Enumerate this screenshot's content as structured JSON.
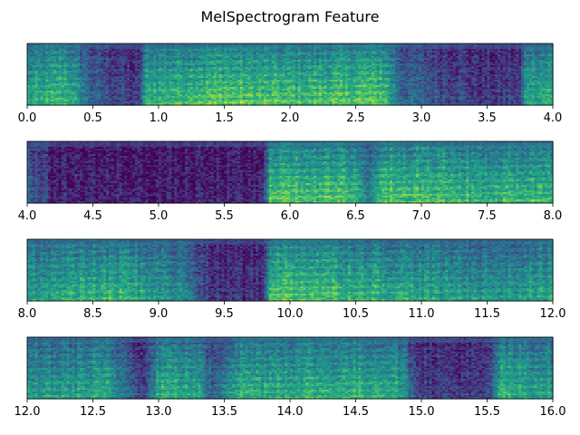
{
  "chart_data": {
    "type": "heatmap",
    "title": "MelSpectrogram Feature",
    "xlabel": "",
    "ylabel": "",
    "colormap": "viridis",
    "colors": {
      "low": "#440154",
      "mid": "#21918c",
      "high": "#fde725"
    },
    "grid": false,
    "legend": "none",
    "panels": [
      {
        "xlim": [
          0.0,
          4.0
        ],
        "xticks": [
          "0.0",
          "0.5",
          "1.0",
          "1.5",
          "2.0",
          "2.5",
          "3.0",
          "3.5",
          "4.0"
        ],
        "energy_profile": [
          {
            "t": 0.0,
            "level": 0.55
          },
          {
            "t": 0.3,
            "level": 0.65
          },
          {
            "t": 0.5,
            "level": 0.3
          },
          {
            "t": 0.85,
            "level": 0.15
          },
          {
            "t": 0.9,
            "level": 0.6
          },
          {
            "t": 1.5,
            "level": 0.7
          },
          {
            "t": 2.0,
            "level": 0.65
          },
          {
            "t": 2.7,
            "level": 0.7
          },
          {
            "t": 2.85,
            "level": 0.35
          },
          {
            "t": 3.5,
            "level": 0.15
          },
          {
            "t": 3.75,
            "level": 0.2
          },
          {
            "t": 3.8,
            "level": 0.6
          },
          {
            "t": 4.0,
            "level": 0.6
          }
        ]
      },
      {
        "xlim": [
          4.0,
          8.0
        ],
        "xticks": [
          "4.0",
          "4.5",
          "5.0",
          "5.5",
          "6.0",
          "6.5",
          "7.0",
          "7.5",
          "8.0"
        ],
        "energy_profile": [
          {
            "t": 4.0,
            "level": 0.35
          },
          {
            "t": 4.2,
            "level": 0.1
          },
          {
            "t": 5.0,
            "level": 0.08
          },
          {
            "t": 5.8,
            "level": 0.1
          },
          {
            "t": 5.85,
            "level": 0.7
          },
          {
            "t": 6.5,
            "level": 0.65
          },
          {
            "t": 6.6,
            "level": 0.4
          },
          {
            "t": 6.7,
            "level": 0.7
          },
          {
            "t": 7.5,
            "level": 0.6
          },
          {
            "t": 8.0,
            "level": 0.65
          }
        ]
      },
      {
        "xlim": [
          8.0,
          12.0
        ],
        "xticks": [
          "8.0",
          "8.5",
          "9.0",
          "9.5",
          "10.0",
          "10.5",
          "11.0",
          "11.5",
          "12.0"
        ],
        "energy_profile": [
          {
            "t": 8.0,
            "level": 0.55
          },
          {
            "t": 8.7,
            "level": 0.6
          },
          {
            "t": 9.2,
            "level": 0.45
          },
          {
            "t": 9.4,
            "level": 0.15
          },
          {
            "t": 9.8,
            "level": 0.15
          },
          {
            "t": 9.85,
            "level": 0.7
          },
          {
            "t": 10.3,
            "level": 0.65
          },
          {
            "t": 11.0,
            "level": 0.55
          },
          {
            "t": 11.5,
            "level": 0.5
          },
          {
            "t": 12.0,
            "level": 0.55
          }
        ]
      },
      {
        "xlim": [
          12.0,
          16.0
        ],
        "xticks": [
          "12.0",
          "12.5",
          "13.0",
          "13.5",
          "14.0",
          "14.5",
          "15.0",
          "15.5",
          "16.0"
        ],
        "energy_profile": [
          {
            "t": 12.0,
            "level": 0.5
          },
          {
            "t": 12.6,
            "level": 0.55
          },
          {
            "t": 12.9,
            "level": 0.2
          },
          {
            "t": 13.0,
            "level": 0.6
          },
          {
            "t": 13.3,
            "level": 0.55
          },
          {
            "t": 13.4,
            "level": 0.3
          },
          {
            "t": 13.6,
            "level": 0.6
          },
          {
            "t": 14.8,
            "level": 0.6
          },
          {
            "t": 15.0,
            "level": 0.2
          },
          {
            "t": 15.5,
            "level": 0.15
          },
          {
            "t": 15.6,
            "level": 0.6
          },
          {
            "t": 16.0,
            "level": 0.55
          }
        ]
      }
    ]
  }
}
